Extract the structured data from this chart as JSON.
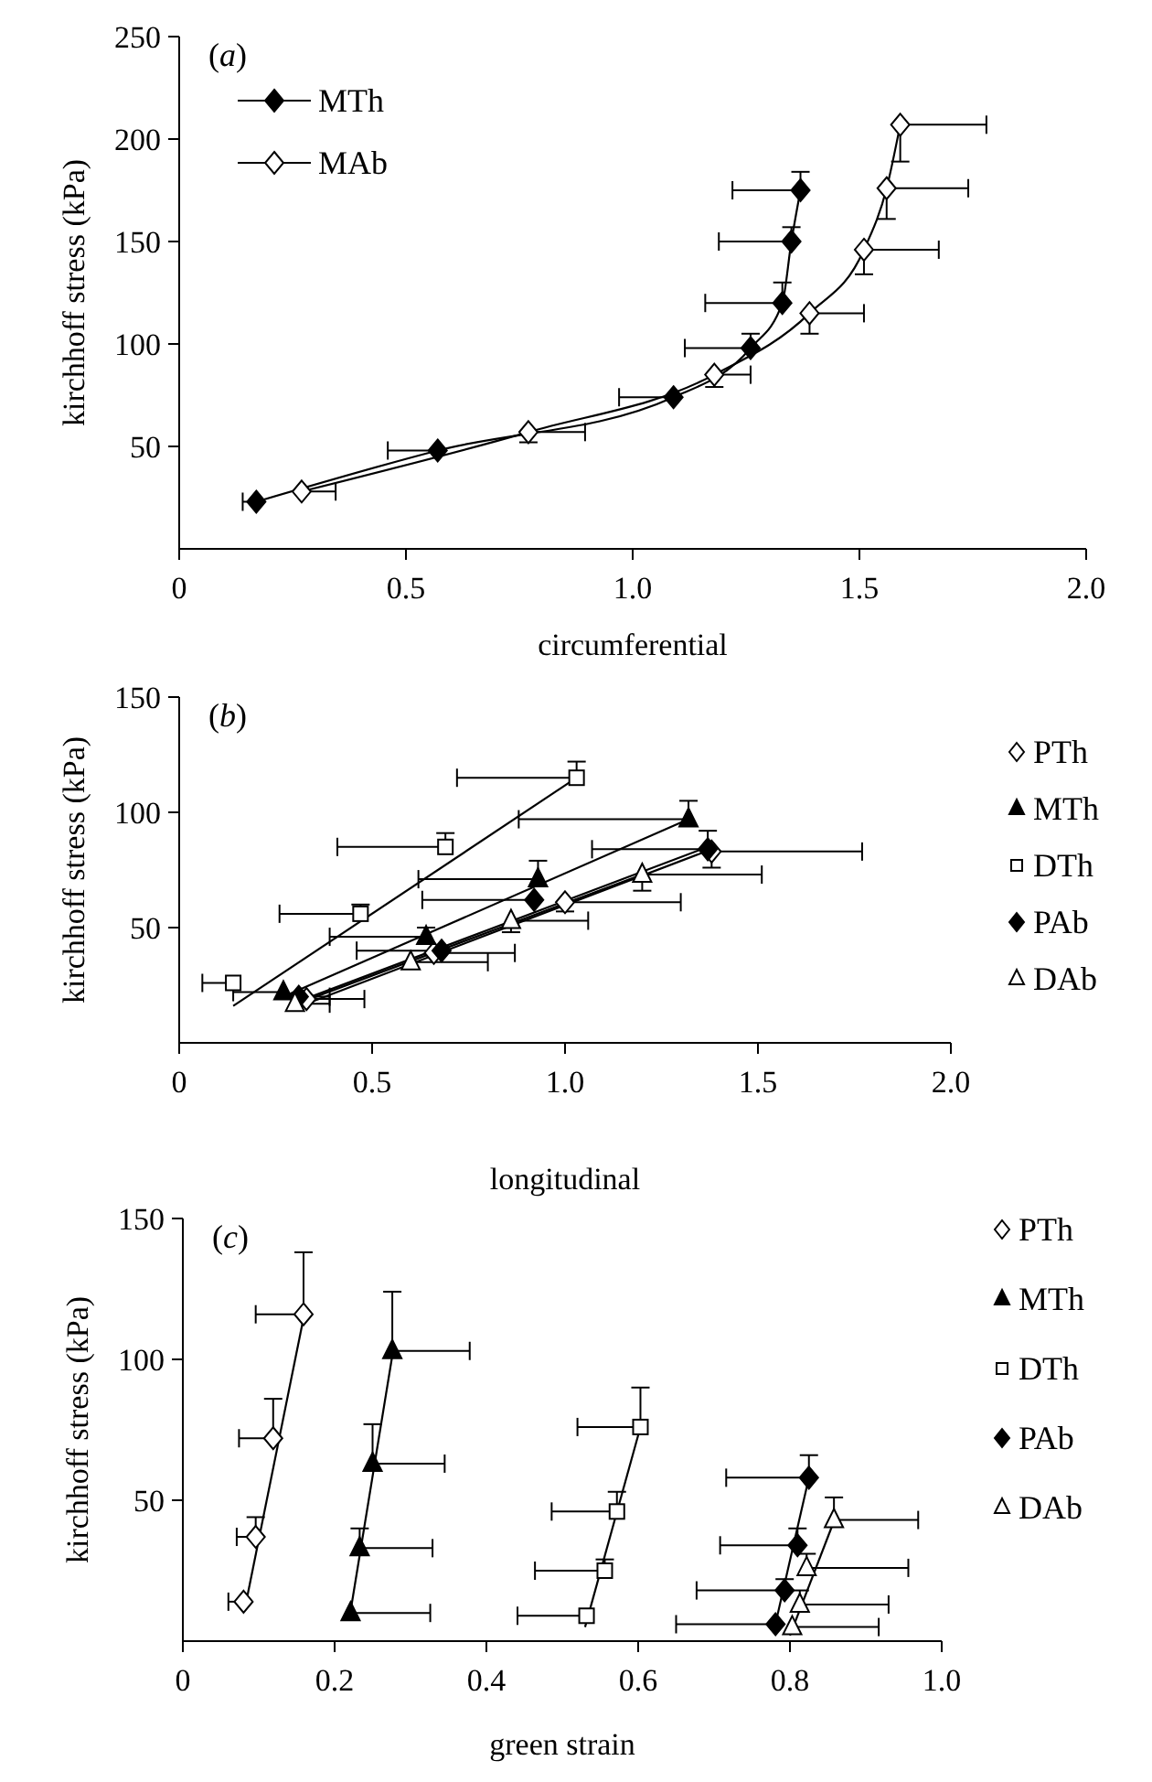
{
  "chart_data": [
    {
      "type": "line",
      "title": "(a)",
      "xlabel": "circumferential",
      "ylabel": "kirchhoff stress (kPa)",
      "xlim": [
        0,
        2
      ],
      "xticks": [
        {
          "value": 0,
          "label": "0"
        },
        {
          "value": 0.5,
          "label": "0.5"
        },
        {
          "value": 1,
          "label": "1.0"
        },
        {
          "value": 1.5,
          "label": "1.5"
        },
        {
          "value": 2,
          "label": "2.0"
        }
      ],
      "ylim": [
        0,
        250
      ],
      "yticks": [
        50,
        100,
        150,
        200,
        250
      ],
      "legend": "top left",
      "series": [
        {
          "name": "MTh",
          "marker": "diamond",
          "color": "#000000",
          "x": [
            0.17,
            0.57,
            1.09,
            1.26,
            1.33,
            1.35,
            1.37
          ],
          "values": [
            23,
            48,
            74,
            98,
            120,
            150,
            175
          ],
          "xerrors": [
            [
              0.14,
              0.17
            ],
            [
              0.46,
              0.57
            ],
            [
              0.97,
              1.09
            ],
            [
              1.115,
              1.26
            ],
            [
              1.16,
              1.33
            ],
            [
              1.19,
              1.35
            ],
            [
              1.22,
              1.37
            ]
          ],
          "errors": [
            null,
            null,
            null,
            [
              98,
              105
            ],
            [
              120,
              130
            ],
            [
              150,
              157
            ],
            [
              175,
              184
            ]
          ]
        },
        {
          "name": "MAb",
          "marker": "diamond",
          "color": "#ffffff",
          "x": [
            0.27,
            0.77,
            1.18,
            1.39,
            1.51,
            1.56,
            1.59
          ],
          "values": [
            28,
            57,
            85,
            115,
            146,
            176,
            207
          ],
          "xerrors": [
            [
              0.27,
              0.345
            ],
            [
              0.77,
              0.895
            ],
            [
              1.18,
              1.26
            ],
            [
              1.39,
              1.51
            ],
            [
              1.51,
              1.675
            ],
            [
              1.56,
              1.74
            ],
            [
              1.59,
              1.78
            ]
          ],
          "errors": [
            null,
            [
              52,
              57
            ],
            [
              79,
              85
            ],
            [
              105,
              115
            ],
            [
              134,
              146
            ],
            [
              161,
              176
            ],
            [
              189,
              207
            ]
          ]
        }
      ]
    },
    {
      "type": "scatter",
      "title": "(b)",
      "xlabel": "longitudinal",
      "ylabel": "kirchhoff stress (kPa)",
      "xlim": [
        0,
        2
      ],
      "xticks": [
        {
          "value": 0,
          "label": "0"
        },
        {
          "value": 0.5,
          "label": "0.5"
        },
        {
          "value": 1,
          "label": "1.0"
        },
        {
          "value": 1.5,
          "label": "1.5"
        },
        {
          "value": 2,
          "label": "2.0"
        }
      ],
      "ylim": [
        0,
        150
      ],
      "yticks": [
        50,
        100,
        150
      ],
      "legend": "right",
      "series": [
        {
          "name": "PTh",
          "marker": "diamond",
          "color": "#ffffff",
          "x": [
            0.33,
            0.66,
            1.0,
            1.38
          ],
          "values": [
            19,
            39,
            61,
            83
          ],
          "xerrors": [
            [
              0.33,
              0.48
            ],
            [
              0.66,
              0.87
            ],
            [
              1.0,
              1.3
            ],
            [
              1.38,
              1.77
            ]
          ],
          "errors": [
            null,
            null,
            [
              57,
              61
            ],
            [
              76,
              83
            ]
          ]
        },
        {
          "name": "MTh",
          "marker": "triangle",
          "color": "#000000",
          "x": [
            0.27,
            0.64,
            0.93,
            1.32
          ],
          "values": [
            22,
            46,
            71,
            97
          ],
          "xerrors": [
            [
              0.14,
              0.27
            ],
            [
              0.39,
              0.64
            ],
            [
              0.62,
              0.93
            ],
            [
              0.88,
              1.32
            ]
          ],
          "errors": [
            null,
            [
              46,
              50
            ],
            [
              71,
              79
            ],
            [
              97,
              105
            ]
          ]
        },
        {
          "name": "DTh",
          "marker": "square",
          "color": "#ffffff",
          "x": [
            0.14,
            0.47,
            0.69,
            1.03
          ],
          "values": [
            26,
            56,
            85,
            115
          ],
          "xerrors": [
            [
              0.06,
              0.14
            ],
            [
              0.26,
              0.47
            ],
            [
              0.41,
              0.69
            ],
            [
              0.72,
              1.03
            ]
          ],
          "errors": [
            null,
            [
              56,
              60
            ],
            [
              85,
              91
            ],
            [
              115,
              122
            ]
          ]
        },
        {
          "name": "PAb",
          "marker": "diamond",
          "color": "#000000",
          "x": [
            0.31,
            0.68,
            0.92,
            1.37
          ],
          "values": [
            20,
            40,
            62,
            84
          ],
          "xerrors": [
            [
              0.31,
              0.39
            ],
            [
              0.46,
              0.68
            ],
            [
              0.63,
              0.92
            ],
            [
              1.07,
              1.37
            ]
          ],
          "errors": [
            null,
            null,
            null,
            [
              84,
              92
            ]
          ]
        },
        {
          "name": "DAb",
          "marker": "triangle",
          "color": "#ffffff",
          "x": [
            0.3,
            0.6,
            0.86,
            1.2
          ],
          "values": [
            17,
            35,
            53,
            73
          ],
          "xerrors": [
            [
              0.3,
              0.39
            ],
            [
              0.6,
              0.8
            ],
            [
              0.86,
              1.06
            ],
            [
              1.2,
              1.51
            ]
          ],
          "errors": [
            null,
            null,
            [
              48,
              53
            ],
            [
              66,
              73
            ]
          ]
        },
        {
          "type": "line",
          "color": "#000000",
          "x": [
            0.33,
            1.38
          ],
          "values": [
            17,
            84
          ]
        },
        {
          "type": "line",
          "color": "#000000",
          "x": [
            0.27,
            1.32
          ],
          "values": [
            20,
            97
          ]
        },
        {
          "type": "line",
          "color": "#000000",
          "x": [
            0.14,
            1.03
          ],
          "values": [
            16,
            115
          ]
        },
        {
          "type": "line",
          "color": "#000000",
          "x": [
            0.31,
            1.37
          ],
          "values": [
            18,
            85
          ]
        },
        {
          "type": "line",
          "color": "#000000",
          "x": [
            0.29,
            1.2
          ],
          "values": [
            16,
            73
          ]
        }
      ]
    },
    {
      "type": "scatter",
      "title": "(c)",
      "xlabel": "green strain",
      "ylabel": "kirchhoff stress (kPa)",
      "xlim": [
        0,
        1
      ],
      "xticks": [
        {
          "value": 0,
          "label": "0"
        },
        0.2,
        0.4,
        0.6,
        0.8,
        {
          "value": 1,
          "label": "1.0"
        }
      ],
      "ylim": [
        0,
        150
      ],
      "yticks": [
        50,
        100,
        150
      ],
      "legend": "right",
      "series": [
        {
          "name": "PTh",
          "marker": "diamond",
          "color": "#ffffff",
          "x": [
            0.08,
            0.096,
            0.119,
            0.159
          ],
          "values": [
            14,
            37,
            72,
            116
          ],
          "xerrors": [
            [
              0.06,
              0.08
            ],
            [
              0.071,
              0.096
            ],
            [
              0.074,
              0.119
            ],
            [
              0.096,
              0.159
            ]
          ],
          "errors": [
            null,
            [
              37,
              44
            ],
            [
              72,
              86
            ],
            [
              116,
              138
            ]
          ]
        },
        {
          "name": "MTh",
          "marker": "triangle",
          "color": "#000000",
          "x": [
            0.221,
            0.233,
            0.25,
            0.276
          ],
          "values": [
            10,
            33,
            63,
            103
          ],
          "xerrors": [
            [
              0.221,
              0.326
            ],
            [
              0.233,
              0.329
            ],
            [
              0.25,
              0.345
            ],
            [
              0.276,
              0.378
            ]
          ],
          "errors": [
            null,
            [
              33,
              40
            ],
            [
              63,
              77
            ],
            [
              103,
              124
            ]
          ]
        },
        {
          "name": "DTh",
          "marker": "square",
          "color": "#ffffff",
          "x": [
            0.532,
            0.556,
            0.572,
            0.603
          ],
          "values": [
            9,
            25,
            46,
            76
          ],
          "xerrors": [
            [
              0.441,
              0.532
            ],
            [
              0.464,
              0.556
            ],
            [
              0.486,
              0.572
            ],
            [
              0.52,
              0.603
            ]
          ],
          "errors": [
            null,
            [
              25,
              29
            ],
            [
              46,
              53
            ],
            [
              76,
              90
            ]
          ]
        },
        {
          "name": "PAb",
          "marker": "diamond",
          "color": "#000000",
          "x": [
            0.781,
            0.793,
            0.81,
            0.825
          ],
          "values": [
            6,
            18,
            34,
            58
          ],
          "xerrors": [
            [
              0.65,
              0.781
            ],
            [
              0.677,
              0.793
            ],
            [
              0.708,
              0.81
            ],
            [
              0.716,
              0.825
            ]
          ],
          "errors": [
            null,
            [
              18,
              22
            ],
            [
              34,
              40
            ],
            [
              58,
              66
            ]
          ]
        },
        {
          "name": "DAb",
          "marker": "triangle",
          "color": "#ffffff",
          "x": [
            0.803,
            0.813,
            0.822,
            0.858
          ],
          "values": [
            5,
            13,
            26,
            43
          ],
          "xerrors": [
            [
              0.803,
              0.917
            ],
            [
              0.813,
              0.93
            ],
            [
              0.822,
              0.956
            ],
            [
              0.858,
              0.969
            ]
          ],
          "errors": [
            null,
            [
              13,
              18
            ],
            [
              26,
              31
            ],
            [
              43,
              51
            ]
          ]
        },
        {
          "type": "line",
          "color": "#000000",
          "x": [
            0.085,
            0.16
          ],
          "values": [
            16,
            116
          ]
        },
        {
          "type": "line",
          "color": "#000000",
          "x": [
            0.22,
            0.277
          ],
          "values": [
            9,
            103
          ]
        },
        {
          "type": "line",
          "color": "#000000",
          "x": [
            0.53,
            0.603
          ],
          "values": [
            5,
            76
          ]
        },
        {
          "type": "line",
          "color": "#000000",
          "x": [
            0.78,
            0.825
          ],
          "values": [
            5,
            58
          ]
        },
        {
          "type": "line",
          "color": "#000000",
          "x": [
            0.8,
            0.86
          ],
          "values": [
            2,
            44
          ]
        }
      ]
    }
  ]
}
